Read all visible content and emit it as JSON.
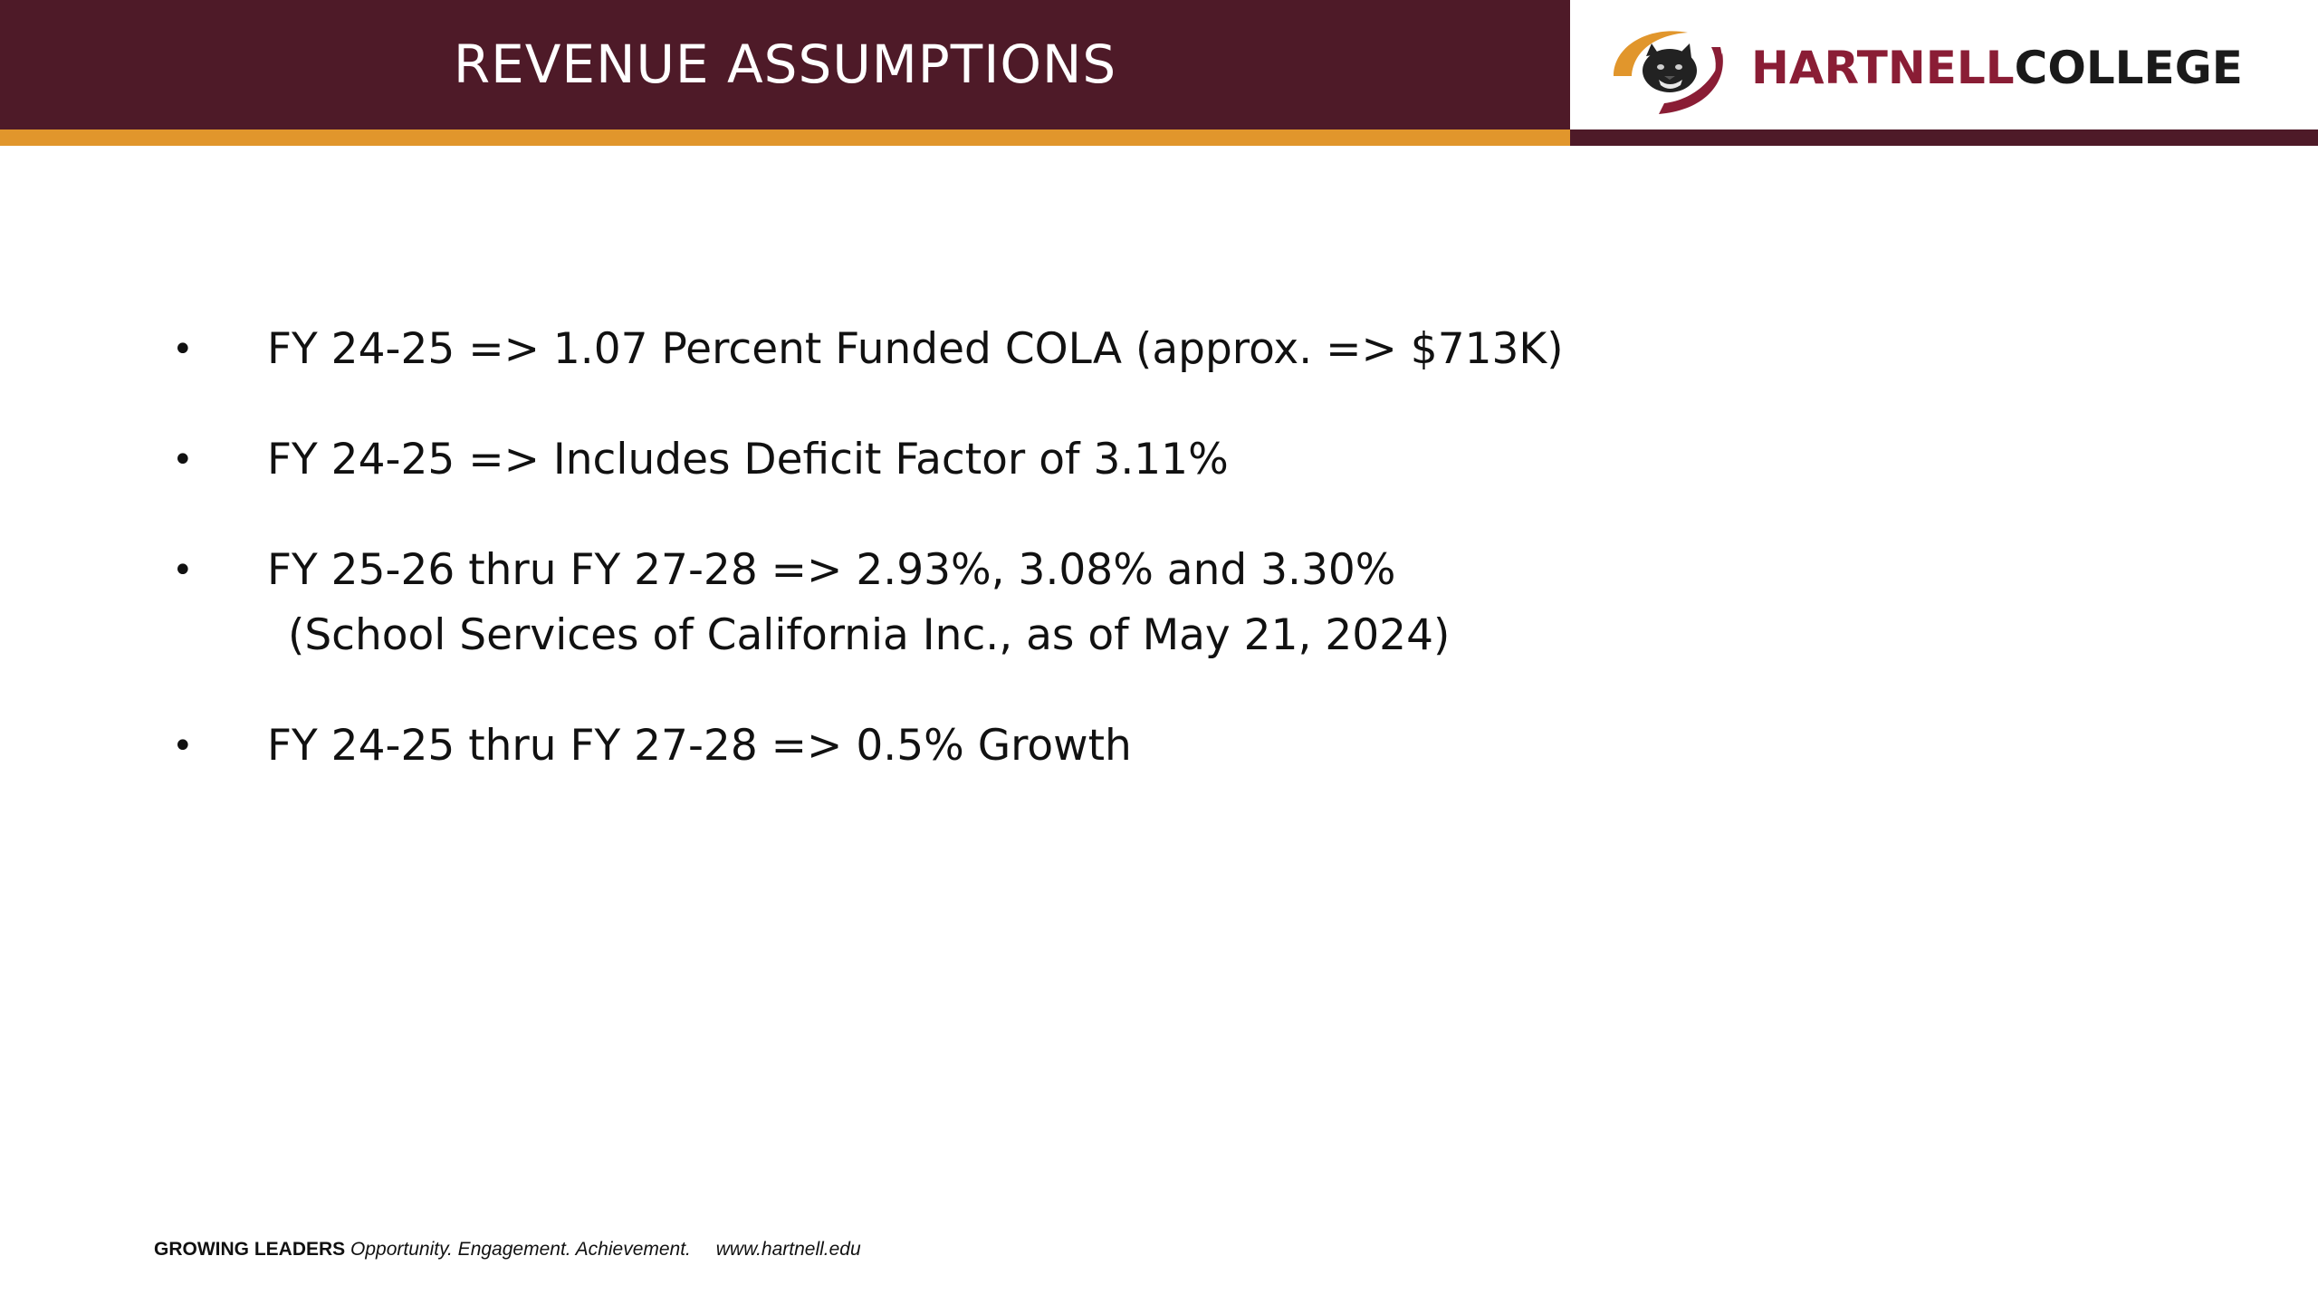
{
  "header": {
    "title": "REVENUE ASSUMPTIONS"
  },
  "logo": {
    "text_part1": "HARTNELL",
    "text_part2": "COLLEGE",
    "icon": "panther-logo-icon",
    "colors": {
      "maroon": "#8a1d35",
      "gold": "#e1962c",
      "dark": "#1a1a1a"
    }
  },
  "theme": {
    "header_bg": "#4e1a28",
    "accent_gold": "#e1962c",
    "background": "#ffffff",
    "text": "#111111"
  },
  "bullets": [
    {
      "symbol": "•",
      "text": "FY 24-25 => 1.07 Percent Funded COLA (approx. => $713K)"
    },
    {
      "symbol": "•",
      "text": "FY 24-25 => Includes Deficit Factor of 3.11%"
    },
    {
      "symbol": "•",
      "text": "FY 25-26 thru FY 27-28 =>  2.93%, 3.08% and 3.30%",
      "subtext": "(School Services of California Inc., as of May 21, 2024)"
    },
    {
      "symbol": "•",
      "text": "FY 24-25 thru FY 27-28 => 0.5% Growth"
    }
  ],
  "footer": {
    "bold": "GROWING LEADERS",
    "tagline": "Opportunity. Engagement. Achievement.",
    "url": "www.hartnell.edu"
  }
}
